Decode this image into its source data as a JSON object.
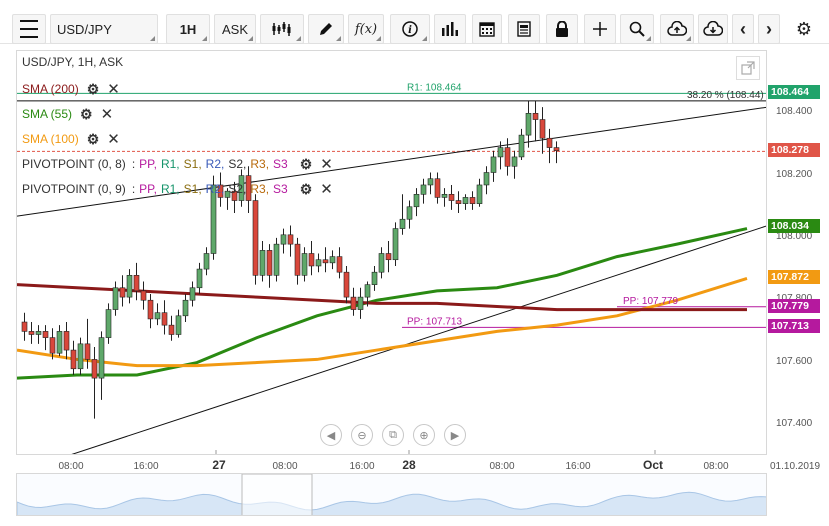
{
  "toolbar": {
    "symbol": "USD/JPY",
    "timeframe": "1H",
    "price_type": "ASK"
  },
  "chart": {
    "title": "USD/JPY, 1H, ASK",
    "indicators": [
      {
        "label": "SMA (200)",
        "color": "#8b1a1a"
      },
      {
        "label": "SMA (55)",
        "color": "#2a8a12"
      },
      {
        "label": "SMA (100)",
        "color": "#f29a12"
      }
    ],
    "pivots": [
      {
        "label": "PIVOTPOINT (0, 8)",
        "prefix": ":"
      },
      {
        "label": "PIVOTPOINT (0, 9)",
        "prefix": ":"
      }
    ],
    "pivot_parts": [
      {
        "text": "PP,",
        "color": "#b5199e"
      },
      {
        "text": "R1,",
        "color": "#15946a"
      },
      {
        "text": "S1,",
        "color": "#8a6d10"
      },
      {
        "text": "R2,",
        "color": "#3a5ab8"
      },
      {
        "text": "S2,",
        "color": "#333333"
      },
      {
        "text": "R3,",
        "color": "#b86a0c"
      },
      {
        "text": "S3",
        "color": "#b5199e"
      }
    ],
    "annotations": {
      "r1": "R1: 108.464",
      "fib": "38.20 % (108.44)",
      "pp1": "PP: 107.779",
      "pp2": "PP: 107.713"
    }
  },
  "y_axis": {
    "ticks": [
      "108.400",
      "108.200",
      "108.000",
      "107.800",
      "107.600",
      "107.400"
    ],
    "tags": [
      {
        "label": "108.464",
        "color": "#21a36b"
      },
      {
        "label": "108.278",
        "color": "#e05548"
      },
      {
        "label": "108.034",
        "color": "#2a8a12"
      },
      {
        "label": "107.872",
        "color": "#f29a12"
      },
      {
        "label": "107.779",
        "color": "#b5199e"
      },
      {
        "label": "107.713",
        "color": "#b5199e"
      }
    ]
  },
  "x_axis": {
    "ticks": [
      "08:00",
      "16:00",
      "27",
      "08:00",
      "16:00",
      "28",
      "08:00",
      "16:00",
      "Oct",
      "08:00"
    ],
    "date_label": "01.10.2019"
  },
  "colors": {
    "bull": "#5fa86a",
    "bear": "#d9473b",
    "sma200": "#8b1a1a",
    "sma55": "#2a8a12",
    "sma100": "#f29a12"
  },
  "chart_data": {
    "type": "candlestick",
    "y_range": [
      107.3,
      108.6
    ],
    "candles": [
      {
        "o": 107.73,
        "h": 107.76,
        "c": 107.7,
        "l": 107.67
      },
      {
        "o": 107.7,
        "h": 107.73,
        "c": 107.69,
        "l": 107.66
      },
      {
        "o": 107.69,
        "h": 107.72,
        "c": 107.7,
        "l": 107.66
      },
      {
        "o": 107.7,
        "h": 107.72,
        "c": 107.68,
        "l": 107.64
      },
      {
        "o": 107.68,
        "h": 107.71,
        "c": 107.63,
        "l": 107.61
      },
      {
        "o": 107.63,
        "h": 107.72,
        "c": 107.7,
        "l": 107.62
      },
      {
        "o": 107.7,
        "h": 107.73,
        "c": 107.64,
        "l": 107.61
      },
      {
        "o": 107.64,
        "h": 107.67,
        "c": 107.58,
        "l": 107.56
      },
      {
        "o": 107.58,
        "h": 107.68,
        "c": 107.66,
        "l": 107.56
      },
      {
        "o": 107.66,
        "h": 107.74,
        "c": 107.61,
        "l": 107.58
      },
      {
        "o": 107.61,
        "h": 107.65,
        "c": 107.55,
        "l": 107.42
      },
      {
        "o": 107.55,
        "h": 107.7,
        "c": 107.68,
        "l": 107.48
      },
      {
        "o": 107.68,
        "h": 107.79,
        "c": 107.77,
        "l": 107.66
      },
      {
        "o": 107.77,
        "h": 107.86,
        "c": 107.84,
        "l": 107.75
      },
      {
        "o": 107.84,
        "h": 107.88,
        "c": 107.81,
        "l": 107.78
      },
      {
        "o": 107.81,
        "h": 107.9,
        "c": 107.88,
        "l": 107.79
      },
      {
        "o": 107.88,
        "h": 107.92,
        "c": 107.83,
        "l": 107.8
      },
      {
        "o": 107.83,
        "h": 107.86,
        "c": 107.8,
        "l": 107.77
      },
      {
        "o": 107.8,
        "h": 107.82,
        "c": 107.74,
        "l": 107.71
      },
      {
        "o": 107.74,
        "h": 107.79,
        "c": 107.76,
        "l": 107.72
      },
      {
        "o": 107.76,
        "h": 107.8,
        "c": 107.72,
        "l": 107.69
      },
      {
        "o": 107.72,
        "h": 107.75,
        "c": 107.69,
        "l": 107.67
      },
      {
        "o": 107.69,
        "h": 107.77,
        "c": 107.75,
        "l": 107.68
      },
      {
        "o": 107.75,
        "h": 107.82,
        "c": 107.8,
        "l": 107.73
      },
      {
        "o": 107.8,
        "h": 107.86,
        "c": 107.84,
        "l": 107.78
      },
      {
        "o": 107.84,
        "h": 107.92,
        "c": 107.9,
        "l": 107.82
      },
      {
        "o": 107.9,
        "h": 107.97,
        "c": 107.95,
        "l": 107.88
      },
      {
        "o": 107.95,
        "h": 108.2,
        "c": 108.17,
        "l": 107.93
      },
      {
        "o": 108.17,
        "h": 108.21,
        "c": 108.13,
        "l": 108.1
      },
      {
        "o": 108.13,
        "h": 108.16,
        "c": 108.15,
        "l": 108.09
      },
      {
        "o": 108.15,
        "h": 108.18,
        "c": 108.12,
        "l": 108.08
      },
      {
        "o": 108.12,
        "h": 108.22,
        "c": 108.2,
        "l": 108.1
      },
      {
        "o": 108.2,
        "h": 108.23,
        "c": 108.12,
        "l": 108.08
      },
      {
        "o": 108.12,
        "h": 108.14,
        "c": 107.88,
        "l": 107.85
      },
      {
        "o": 107.88,
        "h": 107.99,
        "c": 107.96,
        "l": 107.86
      },
      {
        "o": 107.96,
        "h": 107.98,
        "c": 107.88,
        "l": 107.84
      },
      {
        "o": 107.88,
        "h": 108.0,
        "c": 107.98,
        "l": 107.86
      },
      {
        "o": 107.98,
        "h": 108.03,
        "c": 108.01,
        "l": 107.95
      },
      {
        "o": 108.01,
        "h": 108.04,
        "c": 107.98,
        "l": 107.94
      },
      {
        "o": 107.98,
        "h": 108.0,
        "c": 107.88,
        "l": 107.85
      },
      {
        "o": 107.88,
        "h": 107.97,
        "c": 107.95,
        "l": 107.86
      },
      {
        "o": 107.95,
        "h": 107.99,
        "c": 107.91,
        "l": 107.88
      },
      {
        "o": 107.91,
        "h": 107.95,
        "c": 107.93,
        "l": 107.89
      },
      {
        "o": 107.93,
        "h": 107.97,
        "c": 107.92,
        "l": 107.89
      },
      {
        "o": 107.92,
        "h": 107.96,
        "c": 107.94,
        "l": 107.9
      },
      {
        "o": 107.94,
        "h": 107.97,
        "c": 107.89,
        "l": 107.87
      },
      {
        "o": 107.89,
        "h": 107.91,
        "c": 107.81,
        "l": 107.79
      },
      {
        "o": 107.81,
        "h": 107.84,
        "c": 107.77,
        "l": 107.75
      },
      {
        "o": 107.77,
        "h": 107.84,
        "c": 107.81,
        "l": 107.74
      },
      {
        "o": 107.81,
        "h": 107.86,
        "c": 107.85,
        "l": 107.78
      },
      {
        "o": 107.85,
        "h": 107.91,
        "c": 107.89,
        "l": 107.83
      },
      {
        "o": 107.89,
        "h": 107.97,
        "c": 107.95,
        "l": 107.87
      },
      {
        "o": 107.95,
        "h": 107.99,
        "c": 107.93,
        "l": 107.89
      },
      {
        "o": 107.93,
        "h": 108.05,
        "c": 108.03,
        "l": 107.91
      },
      {
        "o": 108.03,
        "h": 108.14,
        "c": 108.06,
        "l": 108.01
      },
      {
        "o": 108.06,
        "h": 108.12,
        "c": 108.1,
        "l": 108.03
      },
      {
        "o": 108.1,
        "h": 108.16,
        "c": 108.14,
        "l": 108.07
      },
      {
        "o": 108.14,
        "h": 108.19,
        "c": 108.17,
        "l": 108.11
      },
      {
        "o": 108.17,
        "h": 108.21,
        "c": 108.19,
        "l": 108.14
      },
      {
        "o": 108.19,
        "h": 108.21,
        "c": 108.13,
        "l": 108.11
      },
      {
        "o": 108.13,
        "h": 108.16,
        "c": 108.14,
        "l": 108.1
      },
      {
        "o": 108.14,
        "h": 108.17,
        "c": 108.12,
        "l": 108.09
      },
      {
        "o": 108.12,
        "h": 108.15,
        "c": 108.11,
        "l": 108.08
      },
      {
        "o": 108.11,
        "h": 108.14,
        "c": 108.13,
        "l": 108.09
      },
      {
        "o": 108.13,
        "h": 108.15,
        "c": 108.11,
        "l": 108.09
      },
      {
        "o": 108.11,
        "h": 108.19,
        "c": 108.17,
        "l": 108.1
      },
      {
        "o": 108.17,
        "h": 108.23,
        "c": 108.21,
        "l": 108.14
      },
      {
        "o": 108.21,
        "h": 108.28,
        "c": 108.26,
        "l": 108.18
      },
      {
        "o": 108.26,
        "h": 108.31,
        "c": 108.29,
        "l": 108.22
      },
      {
        "o": 108.29,
        "h": 108.32,
        "c": 108.23,
        "l": 108.2
      },
      {
        "o": 108.23,
        "h": 108.28,
        "c": 108.26,
        "l": 108.19
      },
      {
        "o": 108.26,
        "h": 108.35,
        "c": 108.33,
        "l": 108.25
      },
      {
        "o": 108.33,
        "h": 108.44,
        "c": 108.4,
        "l": 108.29
      },
      {
        "o": 108.4,
        "h": 108.44,
        "c": 108.38,
        "l": 108.31
      },
      {
        "o": 108.38,
        "h": 108.42,
        "c": 108.32,
        "l": 108.27
      },
      {
        "o": 108.32,
        "h": 108.35,
        "c": 108.29,
        "l": 108.24
      },
      {
        "o": 108.29,
        "h": 108.31,
        "c": 108.28,
        "l": 108.24
      }
    ]
  }
}
